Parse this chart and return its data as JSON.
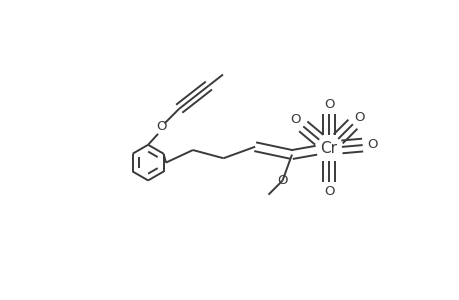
{
  "background": "#ffffff",
  "line_color": "#3a3a3a",
  "line_width": 1.4,
  "font_size": 9.5,
  "cr_font_size": 11,
  "fig_width": 4.6,
  "fig_height": 3.0,
  "dpi": 100,
  "xlim": [
    0,
    4.6
  ],
  "ylim": [
    0,
    3.0
  ]
}
